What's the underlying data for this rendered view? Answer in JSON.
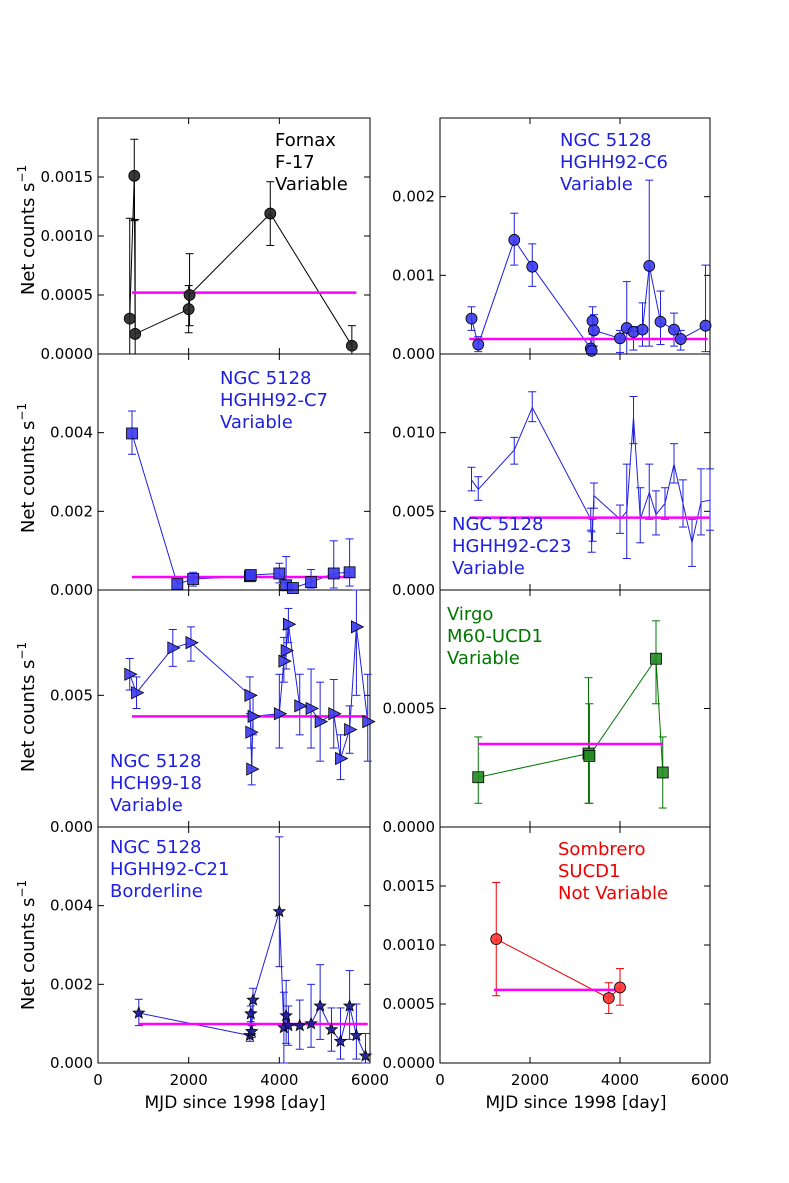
{
  "colors": {
    "black": "#000000",
    "blue": "#2020e0",
    "darkblue": "#000088",
    "green": "#007700",
    "red": "#ee0000",
    "magenta": "#ff00ff",
    "fill_black": "#222222",
    "fill_blue": "#3b3bee",
    "fill_darkblue": "#1a1a99",
    "fill_green": "#228b22",
    "fill_red": "#ff3333"
  },
  "axis_labels": {
    "ylabel": "Net counts s",
    "ylabel_sup": "−1",
    "xlabel_left": "MJD since 1998 [day]",
    "xlabel_right": "MJD since 1998 [day]"
  },
  "chart_data": [
    {
      "type": "scatter",
      "id": "fornax",
      "col": 0,
      "row": 0,
      "title_lines": [
        "Fornax",
        "F-17",
        "Variable"
      ],
      "label_color": "black",
      "label_anchor": "end",
      "marker": "circle",
      "color": "black",
      "fill": "fill_black",
      "xlim": [
        0,
        6000
      ],
      "ylim": [
        0,
        0.002
      ],
      "yticks": [
        "0.0000",
        "0.0005",
        "0.0010",
        "0.0015"
      ],
      "ytick_values": [
        0,
        0.0005,
        0.001,
        0.0015
      ],
      "points": [
        {
          "x": 700,
          "y": 0.0003,
          "lo": 0.0,
          "hi": 0.00115
        },
        {
          "x": 800,
          "y": 0.00151,
          "lo": 0.00113,
          "hi": 0.00182
        },
        {
          "x": 820,
          "y": 0.00017,
          "lo": 0.0,
          "hi": 0.00114
        },
        {
          "x": 2000,
          "y": 0.00038,
          "lo": 0.00018,
          "hi": 0.00058
        },
        {
          "x": 2020,
          "y": 0.0005,
          "lo": 0.00024,
          "hi": 0.00085
        },
        {
          "x": 3800,
          "y": 0.00119,
          "lo": 0.00092,
          "hi": 0.00146
        },
        {
          "x": 5600,
          "y": 7e-05,
          "lo": 0.0,
          "hi": 0.00024
        }
      ],
      "mean": {
        "x1": 750,
        "x2": 5700,
        "y": 0.00052
      }
    },
    {
      "type": "scatter",
      "id": "c6",
      "col": 1,
      "row": 0,
      "title_lines": [
        "NGC 5128",
        "HGHH92-C6",
        "Variable"
      ],
      "label_color": "blue",
      "label_anchor": "start",
      "marker": "circle",
      "color": "blue",
      "fill": "fill_blue",
      "xlim": [
        0,
        6000
      ],
      "ylim": [
        0,
        0.003
      ],
      "yticks": [
        "0.000",
        "0.001",
        "0.002"
      ],
      "ytick_values": [
        0,
        0.001,
        0.002
      ],
      "points": [
        {
          "x": 700,
          "y": 0.00045,
          "lo": 0.0003,
          "hi": 0.0006
        },
        {
          "x": 850,
          "y": 0.00012,
          "lo": 3e-05,
          "hi": 0.00022
        },
        {
          "x": 1650,
          "y": 0.00145,
          "lo": 0.00113,
          "hi": 0.00179
        },
        {
          "x": 2050,
          "y": 0.00111,
          "lo": 0.00086,
          "hi": 0.0014
        },
        {
          "x": 3350,
          "y": 7e-05,
          "lo": 0.0,
          "hi": 0.0002
        },
        {
          "x": 3370,
          "y": 4e-05,
          "lo": 0.0,
          "hi": 0.0001
        },
        {
          "x": 3390,
          "y": 0.00042,
          "lo": 0.00025,
          "hi": 0.0006
        },
        {
          "x": 3420,
          "y": 0.0003,
          "lo": 0.0001,
          "hi": 0.0005
        },
        {
          "x": 4000,
          "y": 0.0002,
          "lo": 2e-05,
          "hi": 0.0003
        },
        {
          "x": 4150,
          "y": 0.00033,
          "lo": 0.0,
          "hi": 0.00092
        },
        {
          "x": 4300,
          "y": 0.00028,
          "lo": 5e-05,
          "hi": 0.00035
        },
        {
          "x": 4500,
          "y": 0.00031,
          "lo": 0.0001,
          "hi": 0.00065
        },
        {
          "x": 4650,
          "y": 0.00112,
          "lo": 0.0001,
          "hi": 0.00221
        },
        {
          "x": 4900,
          "y": 0.00041,
          "lo": 0.00012,
          "hi": 0.0008
        },
        {
          "x": 5200,
          "y": 0.00031,
          "lo": 0.0001,
          "hi": 0.00052
        },
        {
          "x": 5350,
          "y": 0.00019,
          "lo": 5e-05,
          "hi": 0.0003
        },
        {
          "x": 5900,
          "y": 0.00036,
          "lo": 3e-05,
          "hi": 0.00113
        }
      ],
      "mean": {
        "x1": 650,
        "x2": 5950,
        "y": 0.00019
      }
    },
    {
      "type": "scatter",
      "id": "c7",
      "col": 0,
      "row": 1,
      "title_lines": [
        "NGC 5128",
        "HGHH92-C7",
        "Variable"
      ],
      "label_color": "blue",
      "label_anchor": "start",
      "marker": "square",
      "color": "blue",
      "fill": "fill_blue",
      "xlim": [
        0,
        6000
      ],
      "ylim": [
        0,
        0.006
      ],
      "yticks": [
        "0.000",
        "0.002",
        "0.004"
      ],
      "ytick_values": [
        0,
        0.002,
        0.004
      ],
      "points": [
        {
          "x": 750,
          "y": 0.00398,
          "lo": 0.00345,
          "hi": 0.00455
        },
        {
          "x": 1750,
          "y": 0.00015,
          "lo": 5e-05,
          "hi": 0.00025
        },
        {
          "x": 2100,
          "y": 0.00028,
          "lo": 0.0001,
          "hi": 0.00045
        },
        {
          "x": 3350,
          "y": 0.00035,
          "lo": 0.00025,
          "hi": 0.00045
        },
        {
          "x": 3370,
          "y": 0.00038,
          "lo": 0.00028,
          "hi": 0.00048
        },
        {
          "x": 4000,
          "y": 0.00042,
          "lo": 0.00018,
          "hi": 0.00068
        },
        {
          "x": 4150,
          "y": 0.00012,
          "lo": 0.0,
          "hi": 0.00085
        },
        {
          "x": 4300,
          "y": 5e-05,
          "lo": 0.0,
          "hi": 0.00015
        },
        {
          "x": 4700,
          "y": 0.0002,
          "lo": 5e-05,
          "hi": 0.00052
        },
        {
          "x": 5200,
          "y": 0.00042,
          "lo": 5e-05,
          "hi": 0.00125
        },
        {
          "x": 5550,
          "y": 0.00045,
          "lo": 0.0001,
          "hi": 0.0013
        }
      ],
      "mean": {
        "x1": 750,
        "x2": 5600,
        "y": 0.00033
      }
    },
    {
      "type": "scatter",
      "id": "c23",
      "col": 1,
      "row": 1,
      "title_lines": [
        "NGC 5128",
        "HGHH92-C23",
        "Variable"
      ],
      "label_color": "blue",
      "label_anchor": "start",
      "label_position": "bottom",
      "marker": "none",
      "color": "blue",
      "fill": "fill_blue",
      "xlim": [
        0,
        6000
      ],
      "ylim": [
        0,
        0.015
      ],
      "yticks": [
        "0.000",
        "0.005",
        "0.010"
      ],
      "ytick_values": [
        0,
        0.005,
        0.01
      ],
      "points": [
        {
          "x": 700,
          "y": 0.007,
          "lo": 0.0063,
          "hi": 0.0078
        },
        {
          "x": 850,
          "y": 0.0064,
          "lo": 0.0057,
          "hi": 0.0072
        },
        {
          "x": 1650,
          "y": 0.0089,
          "lo": 0.008,
          "hi": 0.0097
        },
        {
          "x": 2050,
          "y": 0.0116,
          "lo": 0.0107,
          "hi": 0.0126
        },
        {
          "x": 3350,
          "y": 0.0045,
          "lo": 0.0038,
          "hi": 0.0052
        },
        {
          "x": 3370,
          "y": 0.003,
          "lo": 0.0024,
          "hi": 0.0037
        },
        {
          "x": 3390,
          "y": 0.0038,
          "lo": 0.0031,
          "hi": 0.0045
        },
        {
          "x": 3420,
          "y": 0.006,
          "lo": 0.0052,
          "hi": 0.0068
        },
        {
          "x": 4000,
          "y": 0.0045,
          "lo": 0.0036,
          "hi": 0.0054
        },
        {
          "x": 4150,
          "y": 0.005,
          "lo": 0.002,
          "hi": 0.008
        },
        {
          "x": 4300,
          "y": 0.011,
          "lo": 0.0093,
          "hi": 0.0123
        },
        {
          "x": 4450,
          "y": 0.0045,
          "lo": 0.003,
          "hi": 0.0065
        },
        {
          "x": 4650,
          "y": 0.0062,
          "lo": 0.0045,
          "hi": 0.008
        },
        {
          "x": 4800,
          "y": 0.0048,
          "lo": 0.0035,
          "hi": 0.0063
        },
        {
          "x": 5000,
          "y": 0.0055,
          "lo": 0.0045,
          "hi": 0.0065
        },
        {
          "x": 5200,
          "y": 0.008,
          "lo": 0.0068,
          "hi": 0.0093
        },
        {
          "x": 5400,
          "y": 0.0055,
          "lo": 0.004,
          "hi": 0.007
        },
        {
          "x": 5600,
          "y": 0.003,
          "lo": 0.0015,
          "hi": 0.0045
        },
        {
          "x": 5800,
          "y": 0.0056,
          "lo": 0.0035,
          "hi": 0.0077
        },
        {
          "x": 6000,
          "y": 0.0057,
          "lo": 0.0038,
          "hi": 0.0077
        }
      ],
      "mean": {
        "x1": 650,
        "x2": 6000,
        "y": 0.0046
      }
    },
    {
      "type": "scatter",
      "id": "hch",
      "col": 0,
      "row": 2,
      "title_lines": [
        "NGC 5128",
        "HCH99-18",
        "Variable"
      ],
      "label_color": "blue",
      "label_anchor": "start",
      "label_position": "bottom",
      "marker": "triangle",
      "color": "blue",
      "fill": "fill_blue",
      "xlim": [
        0,
        6000
      ],
      "ylim": [
        0,
        0.009
      ],
      "yticks": [
        "0.000",
        "0.005"
      ],
      "ytick_values": [
        0,
        0.005
      ],
      "points": [
        {
          "x": 700,
          "y": 0.0058,
          "lo": 0.0052,
          "hi": 0.0064
        },
        {
          "x": 850,
          "y": 0.0051,
          "lo": 0.0045,
          "hi": 0.0057
        },
        {
          "x": 1650,
          "y": 0.0068,
          "lo": 0.0061,
          "hi": 0.0075
        },
        {
          "x": 2050,
          "y": 0.007,
          "lo": 0.0063,
          "hi": 0.0076
        },
        {
          "x": 3350,
          "y": 0.005,
          "lo": 0.0043,
          "hi": 0.0057
        },
        {
          "x": 3370,
          "y": 0.0036,
          "lo": 0.003,
          "hi": 0.0043
        },
        {
          "x": 3390,
          "y": 0.0022,
          "lo": 0.0016,
          "hi": 0.003
        },
        {
          "x": 3420,
          "y": 0.0042,
          "lo": 0.0035,
          "hi": 0.005
        },
        {
          "x": 4000,
          "y": 0.0043,
          "lo": 0.003,
          "hi": 0.0058
        },
        {
          "x": 4100,
          "y": 0.0063,
          "lo": 0.0055,
          "hi": 0.0072
        },
        {
          "x": 4150,
          "y": 0.0067,
          "lo": 0.006,
          "hi": 0.0075
        },
        {
          "x": 4200,
          "y": 0.0077,
          "lo": 0.007,
          "hi": 0.0083
        },
        {
          "x": 4450,
          "y": 0.0046,
          "lo": 0.0035,
          "hi": 0.0058
        },
        {
          "x": 4700,
          "y": 0.0045,
          "lo": 0.003,
          "hi": 0.006
        },
        {
          "x": 4900,
          "y": 0.004,
          "lo": 0.0025,
          "hi": 0.0055
        },
        {
          "x": 5200,
          "y": 0.0043,
          "lo": 0.003,
          "hi": 0.0056
        },
        {
          "x": 5350,
          "y": 0.0026,
          "lo": 0.0018,
          "hi": 0.0035
        },
        {
          "x": 5550,
          "y": 0.0037,
          "lo": 0.0028,
          "hi": 0.0046
        },
        {
          "x": 5700,
          "y": 0.0076,
          "lo": 0.005,
          "hi": 0.009
        },
        {
          "x": 5950,
          "y": 0.004,
          "lo": 0.0025,
          "hi": 0.0058
        }
      ],
      "mean": {
        "x1": 750,
        "x2": 5950,
        "y": 0.0042
      }
    },
    {
      "type": "scatter",
      "id": "m60",
      "col": 1,
      "row": 2,
      "title_lines": [
        "Virgo",
        "M60-UCD1",
        "Variable"
      ],
      "label_color": "green",
      "label_anchor": "start",
      "marker": "square",
      "color": "green",
      "fill": "fill_green",
      "xlim": [
        0,
        6000
      ],
      "ylim": [
        0,
        0.001
      ],
      "yticks": [
        "0.0000",
        "0.0005"
      ],
      "ytick_values": [
        0,
        0.0005
      ],
      "points": [
        {
          "x": 850,
          "y": 0.00021,
          "lo": 0.0001,
          "hi": 0.00038
        },
        {
          "x": 3300,
          "y": 0.00031,
          "lo": 0.0001,
          "hi": 0.00063
        },
        {
          "x": 3320,
          "y": 0.0003,
          "lo": 0.0001,
          "hi": 0.00052
        },
        {
          "x": 4800,
          "y": 0.00071,
          "lo": 0.00052,
          "hi": 0.00087
        },
        {
          "x": 4950,
          "y": 0.00023,
          "lo": 8e-05,
          "hi": 0.00038
        }
      ],
      "mean": {
        "x1": 850,
        "x2": 4950,
        "y": 0.00035
      }
    },
    {
      "type": "scatter",
      "id": "c21",
      "col": 0,
      "row": 3,
      "title_lines": [
        "NGC 5128",
        "HGHH92-C21",
        "Borderline"
      ],
      "label_color": "blue",
      "label_anchor": "start",
      "marker": "star",
      "color": "blue",
      "fill": "fill_darkblue",
      "xlim": [
        0,
        6000
      ],
      "ylim": [
        0,
        0.006
      ],
      "yticks": [
        "0.000",
        "0.002",
        "0.004"
      ],
      "ytick_values": [
        0,
        0.002,
        0.004
      ],
      "points": [
        {
          "x": 900,
          "y": 0.00127,
          "lo": 0.00095,
          "hi": 0.00162
        },
        {
          "x": 3350,
          "y": 0.0007,
          "lo": 0.00055,
          "hi": 0.00085
        },
        {
          "x": 3370,
          "y": 0.00125,
          "lo": 0.00105,
          "hi": 0.00145
        },
        {
          "x": 3390,
          "y": 0.0008,
          "lo": 0.00065,
          "hi": 0.00095
        },
        {
          "x": 3420,
          "y": 0.0016,
          "lo": 0.0013,
          "hi": 0.0019
        },
        {
          "x": 4000,
          "y": 0.00385,
          "lo": 0.00245,
          "hi": 0.00575
        },
        {
          "x": 4100,
          "y": 0.0009,
          "lo": 0.0,
          "hi": 0.0018
        },
        {
          "x": 4150,
          "y": 0.0012,
          "lo": 0.0005,
          "hi": 0.0021
        },
        {
          "x": 4200,
          "y": 0.00095,
          "lo": 0.00045,
          "hi": 0.00145
        },
        {
          "x": 4450,
          "y": 0.00095,
          "lo": 0.00035,
          "hi": 0.0016
        },
        {
          "x": 4700,
          "y": 0.001,
          "lo": 0.0004,
          "hi": 0.002
        },
        {
          "x": 4900,
          "y": 0.00145,
          "lo": 0.0006,
          "hi": 0.0025
        },
        {
          "x": 5150,
          "y": 0.00085,
          "lo": 0.0003,
          "hi": 0.0014
        },
        {
          "x": 5350,
          "y": 0.00055,
          "lo": 0.0001,
          "hi": 0.0014
        },
        {
          "x": 5550,
          "y": 0.00145,
          "lo": 0.0006,
          "hi": 0.00235
        },
        {
          "x": 5700,
          "y": 0.0007,
          "lo": 0.0001,
          "hi": 0.0015
        },
        {
          "x": 5900,
          "y": 0.00018,
          "lo": 0.0,
          "hi": 0.00075
        }
      ],
      "mean": {
        "x1": 900,
        "x2": 5950,
        "y": 0.00099
      }
    },
    {
      "type": "scatter",
      "id": "sucd1",
      "col": 1,
      "row": 3,
      "title_lines": [
        "Sombrero",
        "SUCD1",
        "Not Variable"
      ],
      "label_color": "red",
      "label_anchor": "start",
      "marker": "circle",
      "color": "red",
      "fill": "fill_red",
      "xlim": [
        0,
        6000
      ],
      "ylim": [
        0,
        0.002
      ],
      "yticks": [
        "0.0000",
        "0.0005",
        "0.0010",
        "0.0015"
      ],
      "ytick_values": [
        0,
        0.0005,
        0.001,
        0.0015
      ],
      "points": [
        {
          "x": 1250,
          "y": 0.00105,
          "lo": 0.00057,
          "hi": 0.00153
        },
        {
          "x": 3750,
          "y": 0.00055,
          "lo": 0.00042,
          "hi": 0.00068
        },
        {
          "x": 4000,
          "y": 0.00064,
          "lo": 0.00049,
          "hi": 0.0008
        }
      ],
      "mean": {
        "x1": 1200,
        "x2": 4000,
        "y": 0.00062
      }
    }
  ],
  "xticks": {
    "left": [
      "0",
      "2000",
      "4000",
      "6000"
    ],
    "left_values": [
      0,
      2000,
      4000,
      6000
    ],
    "right": [
      "0",
      "2000",
      "4000",
      "6000"
    ],
    "right_values": [
      0,
      2000,
      4000,
      6000
    ]
  }
}
